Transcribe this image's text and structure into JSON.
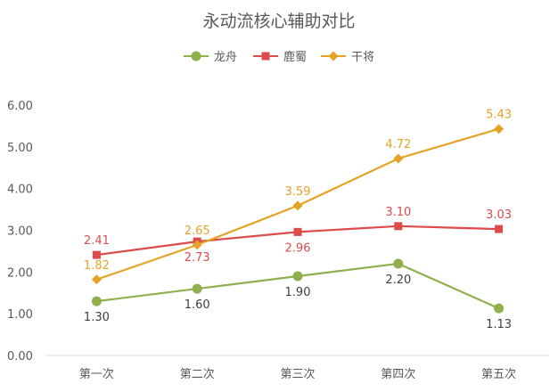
{
  "chart_data": {
    "type": "line",
    "title": "永动流核心辅助对比",
    "categories": [
      "第一次",
      "第二次",
      "第三次",
      "第四次",
      "第五次"
    ],
    "ylim": [
      0,
      6
    ],
    "yticks": [
      "0.00",
      "1.00",
      "2.00",
      "3.00",
      "4.00",
      "5.00",
      "6.00"
    ],
    "grid": false,
    "legend_position": "top",
    "series": [
      {
        "name": "龙舟",
        "values": [
          1.3,
          1.6,
          1.9,
          2.2,
          1.13
        ],
        "labels": [
          "1.30",
          "1.60",
          "1.90",
          "2.20",
          "1.13"
        ],
        "color": "#8fb04d",
        "label_color": "#404040",
        "marker": "circle",
        "label_pos": "below"
      },
      {
        "name": "鹿蜀",
        "values": [
          2.41,
          2.73,
          2.96,
          3.1,
          3.03
        ],
        "labels": [
          "2.41",
          "2.73",
          "2.96",
          "3.10",
          "3.03"
        ],
        "color": "#dd4b4b",
        "label_color": "#dd4b4b",
        "marker": "square",
        "label_pos": "mixed"
      },
      {
        "name": "干将",
        "values": [
          1.82,
          2.65,
          3.59,
          4.72,
          5.43
        ],
        "labels": [
          "1.82",
          "2.65",
          "3.59",
          "4.72",
          "5.43"
        ],
        "color": "#e5a326",
        "label_color": "#e5a326",
        "marker": "diamond",
        "label_pos": "above"
      }
    ]
  }
}
